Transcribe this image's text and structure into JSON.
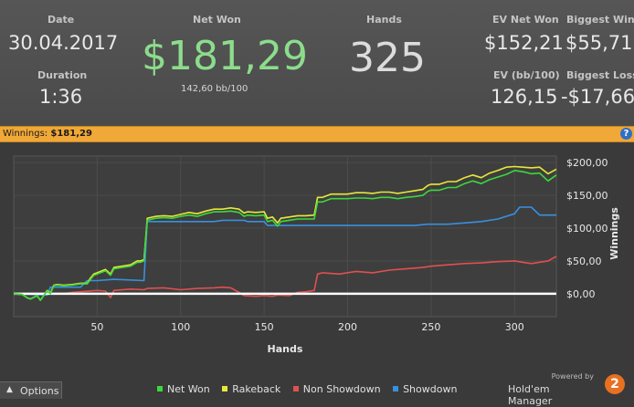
{
  "summary": {
    "date_label": "Date",
    "date": "30.04.2017",
    "duration_label": "Duration",
    "duration": "1:36",
    "net_won_label": "Net Won",
    "net_won": "$181,29",
    "bb_per_100": "142,60 bb/100",
    "hands_label": "Hands",
    "hands": "325",
    "ev_net_won_label": "EV Net Won",
    "ev_net_won": "$152,21",
    "biggest_win_label": "Biggest Win",
    "biggest_win": "$55,71",
    "ev_bb_label": "EV (bb/100)",
    "ev_bb": "126,15",
    "biggest_loss_label": "Biggest Loss",
    "biggest_loss": "-$17,66"
  },
  "winnings_bar": {
    "label": "Winnings:",
    "value": "$181,29",
    "help": "?"
  },
  "chart_data": {
    "type": "line",
    "xlabel": "Hands",
    "ylabel": "Winnings",
    "xlim": [
      0,
      325
    ],
    "ylim": [
      -35,
      210
    ],
    "xticks": [
      "50",
      "100",
      "150",
      "200",
      "250",
      "300"
    ],
    "xtick_values": [
      50,
      100,
      150,
      200,
      250,
      300
    ],
    "yticks": [
      "$200,00",
      "$150,00",
      "$100,00",
      "$50,00",
      "$0,00"
    ],
    "ytick_values": [
      200,
      150,
      100,
      50,
      0
    ],
    "grid": true,
    "legend_position": "bottom",
    "series": [
      {
        "name": "Net Won",
        "color": "#3cd83c",
        "x": [
          0,
          5,
          8,
          10,
          14,
          16,
          20,
          22,
          24,
          26,
          30,
          35,
          40,
          44,
          46,
          48,
          50,
          55,
          58,
          60,
          65,
          70,
          74,
          76,
          78,
          80,
          85,
          90,
          95,
          100,
          105,
          110,
          115,
          120,
          125,
          130,
          135,
          138,
          140,
          145,
          150,
          152,
          155,
          158,
          160,
          165,
          170,
          175,
          180,
          182,
          185,
          190,
          195,
          200,
          205,
          210,
          215,
          220,
          225,
          230,
          235,
          240,
          245,
          248,
          250,
          255,
          260,
          265,
          270,
          275,
          280,
          285,
          290,
          295,
          300,
          305,
          310,
          315,
          320,
          325
        ],
        "values": [
          0,
          -1,
          -6,
          -8,
          -3,
          -10,
          4,
          0,
          12,
          13,
          12,
          13,
          15,
          15,
          22,
          28,
          30,
          35,
          28,
          38,
          40,
          42,
          48,
          48,
          50,
          112,
          115,
          116,
          115,
          118,
          120,
          118,
          122,
          125,
          125,
          126,
          124,
          118,
          120,
          119,
          120,
          110,
          112,
          103,
          110,
          112,
          114,
          114,
          114,
          140,
          140,
          145,
          145,
          145,
          146,
          146,
          145,
          147,
          147,
          145,
          147,
          148,
          150,
          156,
          158,
          158,
          162,
          162,
          168,
          172,
          168,
          174,
          178,
          182,
          188,
          186,
          183,
          184,
          172,
          181
        ]
      },
      {
        "name": "Rakeback",
        "color": "#e8e83a",
        "x": [
          0,
          5,
          8,
          10,
          14,
          16,
          20,
          22,
          24,
          26,
          30,
          35,
          40,
          44,
          46,
          48,
          50,
          55,
          58,
          60,
          65,
          70,
          74,
          76,
          78,
          80,
          85,
          90,
          95,
          100,
          105,
          110,
          115,
          120,
          125,
          130,
          135,
          138,
          140,
          145,
          150,
          152,
          155,
          158,
          160,
          165,
          170,
          175,
          180,
          182,
          185,
          190,
          195,
          200,
          205,
          210,
          215,
          220,
          225,
          230,
          235,
          240,
          245,
          248,
          250,
          255,
          260,
          265,
          270,
          275,
          280,
          285,
          290,
          295,
          300,
          305,
          310,
          315,
          320,
          325
        ],
        "values": [
          0,
          -1,
          -6,
          -8,
          -3,
          -10,
          5,
          1,
          13,
          14,
          13,
          14,
          16,
          16,
          24,
          30,
          32,
          37,
          30,
          40,
          42,
          44,
          50,
          50,
          52,
          115,
          118,
          119,
          118,
          121,
          124,
          122,
          126,
          129,
          129,
          131,
          129,
          123,
          125,
          124,
          125,
          115,
          117,
          108,
          115,
          117,
          119,
          119,
          120,
          147,
          147,
          152,
          152,
          152,
          154,
          154,
          153,
          155,
          155,
          153,
          155,
          157,
          159,
          165,
          167,
          167,
          171,
          171,
          177,
          181,
          177,
          184,
          188,
          193,
          194,
          193,
          192,
          193,
          183,
          190
        ]
      },
      {
        "name": "Non Showdown",
        "color": "#e05050",
        "x": [
          0,
          30,
          35,
          50,
          55,
          58,
          60,
          70,
          78,
          80,
          90,
          100,
          110,
          120,
          125,
          130,
          135,
          138,
          145,
          150,
          155,
          158,
          165,
          170,
          175,
          180,
          182,
          185,
          195,
          205,
          215,
          225,
          235,
          245,
          250,
          260,
          270,
          280,
          290,
          300,
          305,
          310,
          320,
          325
        ],
        "values": [
          0,
          0,
          2,
          5,
          4,
          -6,
          5,
          7,
          6,
          8,
          9,
          6,
          8,
          9,
          10,
          9,
          2,
          -3,
          -4,
          -3,
          -4,
          -2,
          -3,
          2,
          3,
          5,
          30,
          32,
          30,
          34,
          32,
          36,
          38,
          40,
          42,
          44,
          46,
          47,
          49,
          50,
          48,
          46,
          50,
          57
        ]
      },
      {
        "name": "Showdown",
        "color": "#3890e0",
        "x": [
          0,
          20,
          22,
          40,
          44,
          50,
          60,
          78,
          80,
          100,
          120,
          125,
          138,
          140,
          150,
          152,
          160,
          180,
          182,
          200,
          220,
          240,
          248,
          260,
          270,
          280,
          290,
          300,
          303,
          310,
          315,
          325
        ],
        "values": [
          0,
          -2,
          10,
          10,
          20,
          20,
          22,
          20,
          110,
          110,
          110,
          112,
          112,
          110,
          110,
          104,
          104,
          104,
          104,
          104,
          104,
          104,
          106,
          106,
          108,
          110,
          114,
          122,
          132,
          132,
          120,
          120
        ]
      },
      {
        "name": "zero",
        "color": "#ffffff",
        "x": [
          0,
          325
        ],
        "values": [
          0,
          0
        ]
      }
    ]
  },
  "footer": {
    "options_label": "Options",
    "legend": [
      {
        "label": "Net Won",
        "color": "#3cd83c"
      },
      {
        "label": "Rakeback",
        "color": "#e8e83a"
      },
      {
        "label": "Non Showdown",
        "color": "#e05050"
      },
      {
        "label": "Showdown",
        "color": "#3890e0"
      }
    ],
    "powered_by": "Powered by",
    "brand_name": "Hold'em Manager",
    "brand_badge": "2"
  }
}
